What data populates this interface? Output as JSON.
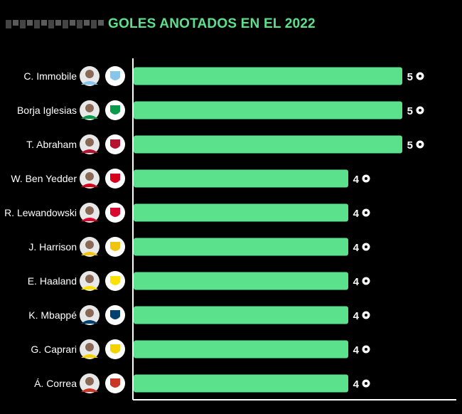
{
  "header": {
    "title": "GOLES ANOTADOS EN EL 2022"
  },
  "colors": {
    "bar": "#5be08c",
    "background": "#000000",
    "title": "#5be08c",
    "text": "#ffffff"
  },
  "icons": {
    "value_suffix": "soccer-ball-icon",
    "player": "player-avatar",
    "club": "club-crest-icon"
  },
  "chart_data": {
    "type": "bar",
    "orientation": "horizontal",
    "title": "GOLES ANOTADOS EN EL 2022",
    "xlabel": "",
    "ylabel": "",
    "xlim": [
      0,
      5
    ],
    "grid": false,
    "categories": [
      "C. Immobile",
      "Borja Iglesias",
      "T. Abraham",
      "W. Ben Yedder",
      "R. Lewandowski",
      "J. Harrison",
      "E. Haaland",
      "K. Mbappé",
      "G. Caprari",
      "Á. Correa"
    ],
    "values": [
      5,
      5,
      5,
      4,
      4,
      4,
      4,
      4,
      4,
      4
    ],
    "clubs": [
      {
        "name": "lazio-crest-icon",
        "color": "#87c5ea"
      },
      {
        "name": "betis-crest-icon",
        "color": "#0a9a49"
      },
      {
        "name": "roma-crest-icon",
        "color": "#b4122e"
      },
      {
        "name": "monaco-crest-icon",
        "color": "#d6001c"
      },
      {
        "name": "bayern-crest-icon",
        "color": "#dc052d"
      },
      {
        "name": "leeds-crest-icon",
        "color": "#f1c40f"
      },
      {
        "name": "dortmund-crest-icon",
        "color": "#fde100"
      },
      {
        "name": "psg-crest-icon",
        "color": "#004170"
      },
      {
        "name": "verona-crest-icon",
        "color": "#f5d300"
      },
      {
        "name": "atletico-crest-icon",
        "color": "#cb3524"
      }
    ]
  }
}
